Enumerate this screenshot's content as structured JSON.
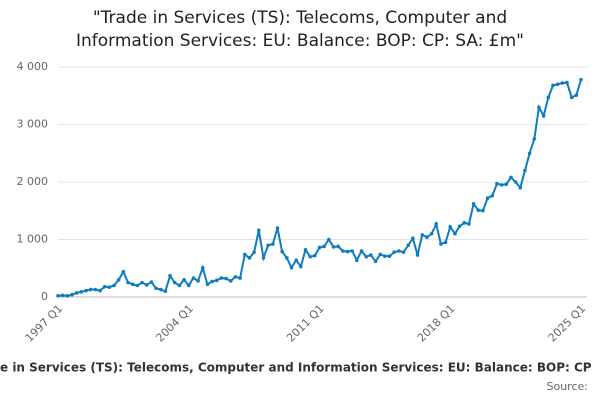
{
  "chart_data": {
    "type": "line",
    "title": [
      "\"Trade in Services (TS): Telecoms, Computer and",
      "Information Services: EU: Balance: BOP: CP: SA: £m\""
    ],
    "source": "Source:",
    "categories": [
      "1997 Q1",
      null,
      null,
      null,
      null,
      null,
      null,
      null,
      null,
      null,
      null,
      null,
      null,
      null,
      null,
      null,
      null,
      null,
      null,
      null,
      null,
      null,
      null,
      null,
      null,
      null,
      null,
      null,
      "2004 Q1",
      null,
      null,
      null,
      null,
      null,
      null,
      null,
      null,
      null,
      null,
      null,
      null,
      null,
      null,
      null,
      null,
      null,
      null,
      null,
      null,
      null,
      null,
      null,
      null,
      null,
      null,
      null,
      "2011 Q1",
      null,
      null,
      null,
      null,
      null,
      null,
      null,
      null,
      null,
      null,
      null,
      null,
      null,
      null,
      null,
      null,
      null,
      null,
      null,
      null,
      null,
      null,
      null,
      null,
      null,
      null,
      null,
      "2018 Q1",
      null,
      null,
      null,
      null,
      null,
      null,
      null,
      null,
      null,
      null,
      null,
      null,
      null,
      null,
      null,
      null,
      null,
      null,
      null,
      null,
      null,
      null,
      null,
      null,
      null,
      null,
      null,
      "2025 Q1"
    ],
    "series": [
      {
        "name": "e in Services (TS): Telecoms, Computer and Information Services: EU: Balance: BOP: CP",
        "color": "#0f7dbd",
        "values": [
          20,
          30,
          20,
          40,
          70,
          90,
          110,
          130,
          130,
          110,
          180,
          170,
          200,
          300,
          440,
          250,
          220,
          200,
          250,
          210,
          260,
          150,
          130,
          100,
          370,
          250,
          200,
          300,
          200,
          330,
          280,
          510,
          220,
          270,
          290,
          330,
          320,
          280,
          350,
          330,
          740,
          680,
          780,
          1160,
          680,
          900,
          920,
          1200,
          790,
          680,
          510,
          640,
          530,
          820,
          700,
          720,
          860,
          880,
          1000,
          870,
          880,
          800,
          790,
          800,
          640,
          800,
          700,
          730,
          620,
          740,
          710,
          710,
          780,
          800,
          780,
          900,
          1020,
          730,
          1080,
          1040,
          1100,
          1270,
          920,
          950,
          1220,
          1100,
          1230,
          1290,
          1270,
          1620,
          1510,
          1500,
          1720,
          1760,
          1970,
          1950,
          1960,
          2080,
          2000,
          1900,
          2200,
          2500,
          2750,
          3300,
          3150,
          3470,
          3680,
          3700,
          3720,
          3730,
          3470,
          3510,
          3780
        ]
      }
    ],
    "ylim": [
      0,
      4000
    ],
    "yticks": [
      0,
      {
        "value": 1000,
        "label": "1 000"
      },
      {
        "value": 2000,
        "label": "2 000"
      },
      {
        "value": 3000,
        "label": "3 000"
      },
      {
        "value": 4000,
        "label": "4 000"
      }
    ],
    "grid": true
  }
}
